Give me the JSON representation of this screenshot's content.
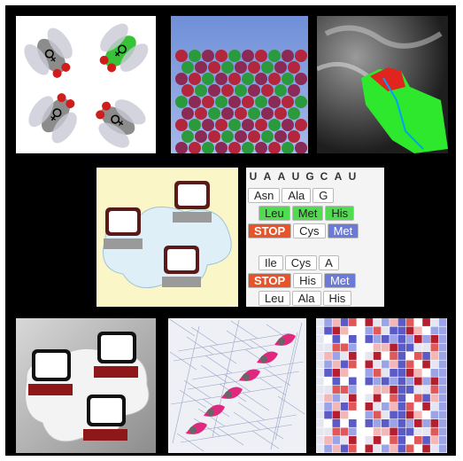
{
  "title": "",
  "codon_tile": {
    "rows": [
      {
        "kind": "nuc",
        "cells": [
          "U",
          "A",
          "A",
          "U",
          "G",
          "C",
          "A",
          "U"
        ]
      },
      {
        "kind": "aa",
        "cells": [
          "Asn",
          "Ala",
          "G"
        ]
      },
      {
        "kind": "aa-green",
        "cells": [
          "Leu",
          "Met",
          "His"
        ]
      },
      {
        "kind": "aa-mix",
        "cells": [
          "STOP",
          "Cys",
          "Met"
        ]
      },
      {
        "kind": "aa",
        "cells": [
          "Ile",
          "Cys",
          "A"
        ]
      },
      {
        "kind": "aa-mix2",
        "cells": [
          "STOP",
          "His",
          "Met"
        ]
      },
      {
        "kind": "aa",
        "cells": [
          "Leu",
          "Ala",
          "His"
        ]
      }
    ]
  },
  "fly_symbol_top": "♀",
  "fly_symbol_right": "♀",
  "fly_symbol_bottom_left": "♀",
  "fly_symbol_bottom_right": "♀",
  "colors": {
    "frame": "#000000",
    "fly_green": "#38c238",
    "fly_red": "#d11c1c",
    "protein_pink": "#e0287f",
    "computer_red": "#8f1717"
  }
}
